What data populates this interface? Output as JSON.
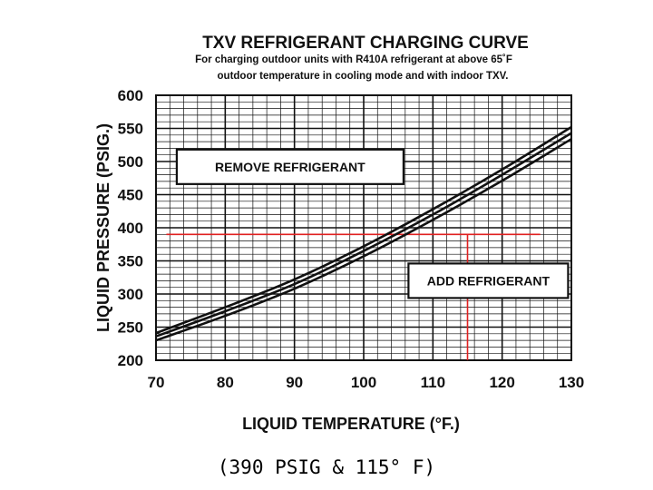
{
  "chart_data": {
    "type": "line",
    "title": "TXV REFRIGERANT CHARGING CURVE",
    "subtitle_lines": [
      "For charging  outdoor units with R410A refrigerant at above 65˚F",
      "outdoor temperature in cooling mode and with indoor TXV."
    ],
    "xlabel": "LIQUID TEMPERATURE (°F.)",
    "ylabel": "LIQUID PRESSURE (PSIG.)",
    "xlim": [
      70,
      130
    ],
    "ylim": [
      200,
      600
    ],
    "x_ticks": [
      70,
      80,
      90,
      100,
      110,
      120,
      130
    ],
    "y_ticks": [
      200,
      250,
      300,
      350,
      400,
      450,
      500,
      550,
      600
    ],
    "grid": true,
    "series": [
      {
        "x": [
          70,
          80,
          90,
          100,
          110,
          120,
          130
        ],
        "y": [
          241,
          280,
          322,
          372,
          428,
          488,
          552
        ]
      },
      {
        "x": [
          70,
          80,
          90,
          100,
          110,
          120,
          130
        ],
        "y": [
          236,
          274,
          315,
          365,
          420,
          480,
          543
        ]
      },
      {
        "x": [
          70,
          80,
          90,
          100,
          110,
          120,
          130
        ],
        "y": [
          230,
          267,
          308,
          357,
          412,
          471,
          534
        ]
      }
    ],
    "annotations": [
      {
        "text": "REMOVE REFRIGERANT",
        "x": 73,
        "y": 492
      },
      {
        "text": "ADD REFRIGERANT",
        "x": 118,
        "y": 320
      }
    ],
    "reference_point": {
      "x": 115,
      "y": 390,
      "color": "#e02020"
    }
  },
  "caption": "(390 PSIG & 115° F)",
  "colors": {
    "ink": "#111111",
    "reference": "#e02020",
    "background": "#ffffff"
  }
}
